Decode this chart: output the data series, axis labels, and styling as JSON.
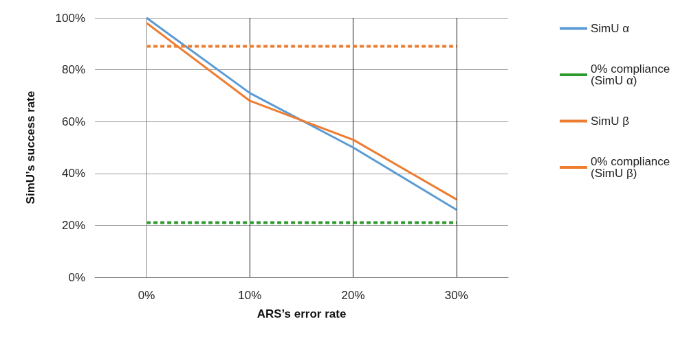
{
  "chart_data": {
    "type": "line",
    "xlabel": "ARS’s error rate",
    "ylabel": "SimU’s success rate",
    "x": [
      0,
      10,
      20,
      30
    ],
    "xlim": [
      -5,
      35
    ],
    "xticks": [
      {
        "value": 0,
        "label": "0%"
      },
      {
        "value": 10,
        "label": "10%"
      },
      {
        "value": 20,
        "label": "20%"
      },
      {
        "value": 30,
        "label": "30%"
      }
    ],
    "ylim": [
      0,
      100
    ],
    "yticks": [
      {
        "value": 0,
        "label": "0%"
      },
      {
        "value": 20,
        "label": "20%"
      },
      {
        "value": 40,
        "label": "40%"
      },
      {
        "value": 60,
        "label": "60%"
      },
      {
        "value": 80,
        "label": "80%"
      },
      {
        "value": 100,
        "label": "100%"
      }
    ],
    "grid": true,
    "legend": "right",
    "marker": "none",
    "series": [
      {
        "name": "SimU α",
        "color": "#5b9bd5",
        "values": [
          100,
          71,
          50,
          26
        ],
        "line_style": "solid"
      },
      {
        "name": "0% compliance (SimU α)",
        "color": "#2e9a2e",
        "values": [
          21,
          21,
          21,
          21
        ],
        "line_style": "dashed"
      },
      {
        "name": "SimU β",
        "color": "#ed7d31",
        "values": [
          98,
          68,
          53,
          30
        ],
        "line_style": "solid"
      },
      {
        "name": "0% compliance (SimU β)",
        "color": "#ed7d31",
        "values": [
          89,
          89,
          89,
          89
        ],
        "line_style": "dashed"
      }
    ]
  }
}
